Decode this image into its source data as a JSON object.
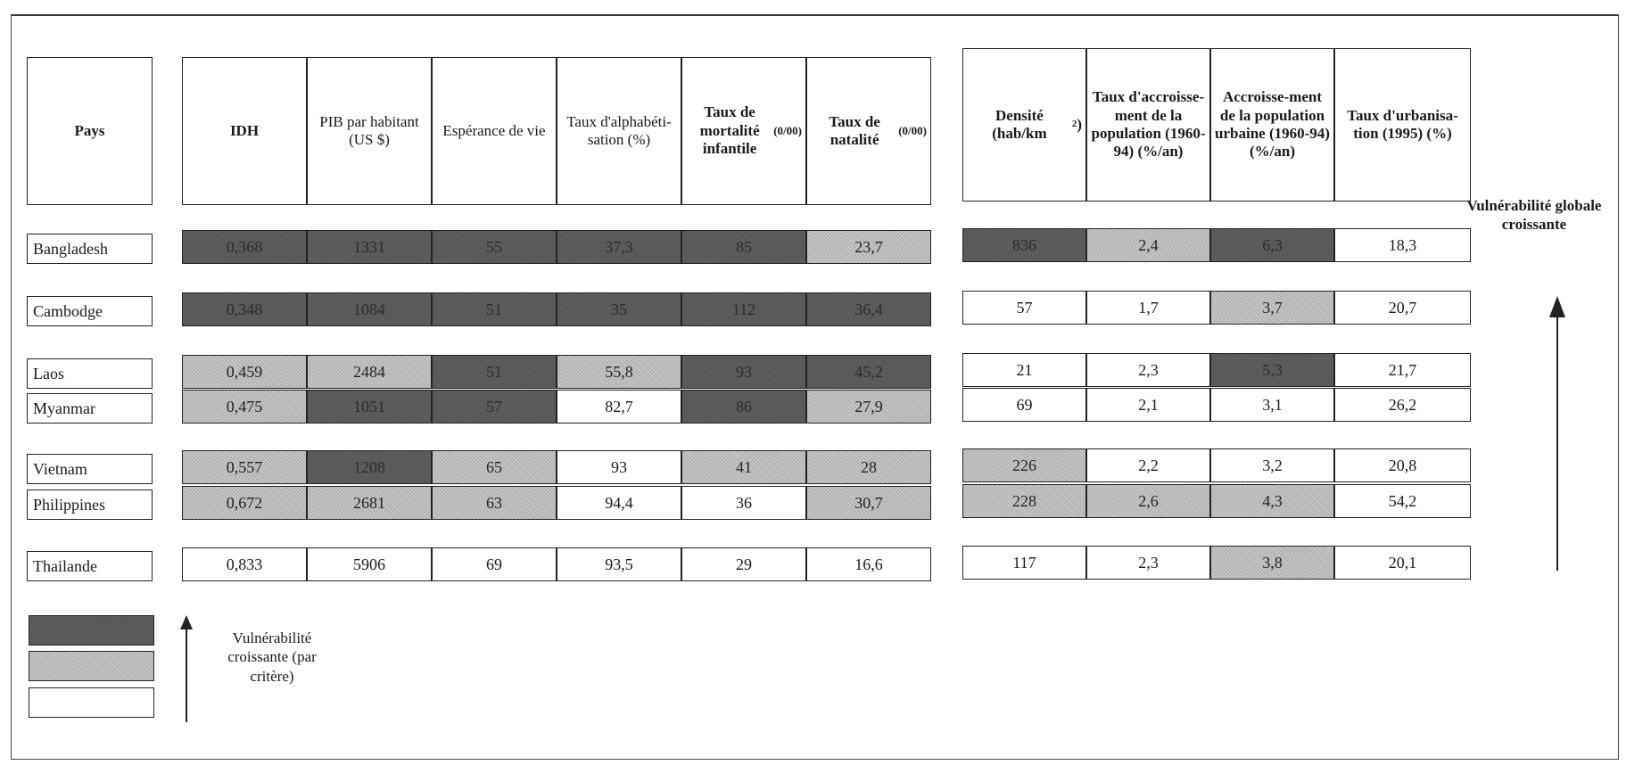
{
  "table1": {
    "country_header": "Pays",
    "headers": [
      {
        "text": "IDH",
        "bold": true
      },
      {
        "text": "PIB par habitant (US $)",
        "bold": false
      },
      {
        "text": "Espérance de vie",
        "bold": false
      },
      {
        "text": "Taux d'alphabéti-sation (%)",
        "bold": false
      },
      {
        "text": "Taux de mortalité infantile",
        "small": "(0/00)",
        "bold": true
      },
      {
        "text": "Taux de natalité",
        "small": "(0/00)",
        "bold": true
      }
    ]
  },
  "table2": {
    "headers": [
      {
        "text": "Densité (hab/km",
        "sup": "2",
        "suffix": ")",
        "bold": true
      },
      {
        "text": "Taux d'accroisse-ment de la population (1960-94) (%/an)",
        "bold": true
      },
      {
        "text": "Accroisse-ment de la population urbaine (1960-94) (%/an)",
        "bold": true
      },
      {
        "text": "Taux d'urbanisa-tion (1995) (%)",
        "bold": true
      }
    ]
  },
  "rows": [
    {
      "country": "Bangladesh",
      "t1": [
        {
          "v": "0,368",
          "s": "dark"
        },
        {
          "v": "1331",
          "s": "dark"
        },
        {
          "v": "55",
          "s": "dark"
        },
        {
          "v": "37,3",
          "s": "dark"
        },
        {
          "v": "85",
          "s": "dark"
        },
        {
          "v": "23,7",
          "s": "light"
        }
      ],
      "t2": [
        {
          "v": "836",
          "s": "dark"
        },
        {
          "v": "2,4",
          "s": "light"
        },
        {
          "v": "6,3",
          "s": "dark"
        },
        {
          "v": "18,3",
          "s": "white"
        }
      ]
    },
    {
      "country": "Cambodge",
      "t1": [
        {
          "v": "0,348",
          "s": "dark"
        },
        {
          "v": "1084",
          "s": "dark"
        },
        {
          "v": "51",
          "s": "dark"
        },
        {
          "v": "35",
          "s": "dark"
        },
        {
          "v": "112",
          "s": "dark"
        },
        {
          "v": "36,4",
          "s": "dark"
        }
      ],
      "t2": [
        {
          "v": "57",
          "s": "white"
        },
        {
          "v": "1,7",
          "s": "white"
        },
        {
          "v": "3,7",
          "s": "light"
        },
        {
          "v": "20,7",
          "s": "white"
        }
      ]
    },
    {
      "country": "Laos",
      "t1": [
        {
          "v": "0,459",
          "s": "light"
        },
        {
          "v": "2484",
          "s": "light"
        },
        {
          "v": "51",
          "s": "dark"
        },
        {
          "v": "55,8",
          "s": "light"
        },
        {
          "v": "93",
          "s": "dark"
        },
        {
          "v": "45,2",
          "s": "dark"
        }
      ],
      "t2": [
        {
          "v": "21",
          "s": "white"
        },
        {
          "v": "2,3",
          "s": "white"
        },
        {
          "v": "5,3",
          "s": "dark"
        },
        {
          "v": "21,7",
          "s": "white"
        }
      ]
    },
    {
      "country": "Myanmar",
      "t1": [
        {
          "v": "0,475",
          "s": "light"
        },
        {
          "v": "1051",
          "s": "dark"
        },
        {
          "v": "57",
          "s": "dark"
        },
        {
          "v": "82,7",
          "s": "white"
        },
        {
          "v": "86",
          "s": "dark"
        },
        {
          "v": "27,9",
          "s": "light"
        }
      ],
      "t2": [
        {
          "v": "69",
          "s": "white"
        },
        {
          "v": "2,1",
          "s": "white"
        },
        {
          "v": "3,1",
          "s": "white"
        },
        {
          "v": "26,2",
          "s": "white"
        }
      ]
    },
    {
      "country": "Vietnam",
      "t1": [
        {
          "v": "0,557",
          "s": "light"
        },
        {
          "v": "1208",
          "s": "dark"
        },
        {
          "v": "65",
          "s": "light"
        },
        {
          "v": "93",
          "s": "white"
        },
        {
          "v": "41",
          "s": "light"
        },
        {
          "v": "28",
          "s": "light"
        }
      ],
      "t2": [
        {
          "v": "226",
          "s": "light"
        },
        {
          "v": "2,2",
          "s": "white"
        },
        {
          "v": "3,2",
          "s": "white"
        },
        {
          "v": "20,8",
          "s": "white"
        }
      ]
    },
    {
      "country": "Philippines",
      "t1": [
        {
          "v": "0,672",
          "s": "light"
        },
        {
          "v": "2681",
          "s": "light"
        },
        {
          "v": "63",
          "s": "light"
        },
        {
          "v": "94,4",
          "s": "white"
        },
        {
          "v": "36",
          "s": "white"
        },
        {
          "v": "30,7",
          "s": "light"
        }
      ],
      "t2": [
        {
          "v": "228",
          "s": "light"
        },
        {
          "v": "2,6",
          "s": "light"
        },
        {
          "v": "4,3",
          "s": "light"
        },
        {
          "v": "54,2",
          "s": "white"
        }
      ]
    },
    {
      "country": "Thailande",
      "t1": [
        {
          "v": "0,833",
          "s": "white"
        },
        {
          "v": "5906",
          "s": "white"
        },
        {
          "v": "69",
          "s": "white"
        },
        {
          "v": "93,5",
          "s": "white"
        },
        {
          "v": "29",
          "s": "white"
        },
        {
          "v": "16,6",
          "s": "white"
        }
      ],
      "t2": [
        {
          "v": "117",
          "s": "white"
        },
        {
          "v": "2,3",
          "s": "white"
        },
        {
          "v": "3,8",
          "s": "light"
        },
        {
          "v": "20,1",
          "s": "white"
        }
      ]
    }
  ],
  "legend": {
    "label": "Vulnérabilité croissante (par critère)",
    "swatches": [
      "dark",
      "light",
      "white"
    ]
  },
  "global": {
    "label": "Vulnérabilité globale croissante"
  },
  "colors": {
    "dark": "#5a5a5a",
    "light": "#b8b8b8",
    "white": "#ffffff"
  }
}
